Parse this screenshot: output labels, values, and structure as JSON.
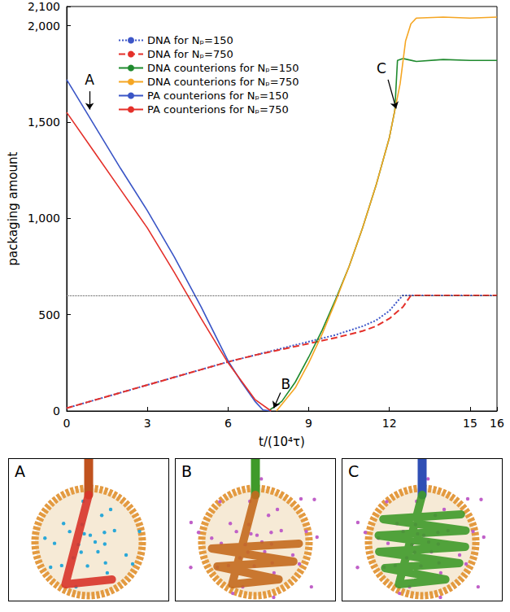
{
  "chart_data": {
    "type": "line",
    "xlabel": "t/(10⁴τ)",
    "ylabel": "packaging amount",
    "xlim": [
      0,
      16
    ],
    "xticks": [
      0,
      3,
      6,
      9,
      12,
      15
    ],
    "ylim": [
      0,
      2100
    ],
    "yticks": [
      0,
      500,
      1000,
      1500,
      2000
    ],
    "grid": false,
    "legend": "upper left",
    "reference_line": 600,
    "series": [
      {
        "name": "DNA for Nₚ=150",
        "color": "#3d56c8",
        "line_style": "dotted",
        "values": [
          [
            0,
            15
          ],
          [
            1,
            55
          ],
          [
            2,
            95
          ],
          [
            3,
            135
          ],
          [
            4,
            175
          ],
          [
            5,
            215
          ],
          [
            6,
            255
          ],
          [
            7,
            290
          ],
          [
            8,
            325
          ],
          [
            9,
            360
          ],
          [
            10,
            395
          ],
          [
            11,
            440
          ],
          [
            11.5,
            470
          ],
          [
            12,
            520
          ],
          [
            12.3,
            570
          ],
          [
            12.5,
            600
          ],
          [
            16,
            600
          ]
        ]
      },
      {
        "name": "DNA for Nₚ=750",
        "color": "#e4302a",
        "line_style": "dashed",
        "values": [
          [
            0,
            15
          ],
          [
            1,
            55
          ],
          [
            2,
            95
          ],
          [
            3,
            135
          ],
          [
            4,
            175
          ],
          [
            5,
            215
          ],
          [
            6,
            255
          ],
          [
            7,
            290
          ],
          [
            8,
            320
          ],
          [
            9,
            350
          ],
          [
            10,
            380
          ],
          [
            11,
            415
          ],
          [
            11.5,
            440
          ],
          [
            12,
            480
          ],
          [
            12.5,
            540
          ],
          [
            12.8,
            600
          ],
          [
            16,
            600
          ]
        ]
      },
      {
        "name": "DNA counterions for Nₚ=150",
        "color": "#1f8a2e",
        "line_style": "solid",
        "values": [
          [
            7.5,
            0
          ],
          [
            8,
            50
          ],
          [
            8.5,
            150
          ],
          [
            9,
            280
          ],
          [
            9.5,
            420
          ],
          [
            10,
            580
          ],
          [
            10.5,
            750
          ],
          [
            11,
            950
          ],
          [
            11.5,
            1170
          ],
          [
            12,
            1420
          ],
          [
            12.2,
            1560
          ],
          [
            12.3,
            1820
          ],
          [
            12.5,
            1830
          ],
          [
            13,
            1815
          ],
          [
            14,
            1825
          ],
          [
            15,
            1820
          ],
          [
            16,
            1820
          ]
        ]
      },
      {
        "name": "DNA counterions for Nₚ=750",
        "color": "#f5a623",
        "line_style": "solid",
        "values": [
          [
            7.8,
            0
          ],
          [
            8.5,
            120
          ],
          [
            9,
            250
          ],
          [
            9.5,
            400
          ],
          [
            10,
            570
          ],
          [
            10.5,
            750
          ],
          [
            11,
            950
          ],
          [
            11.5,
            1170
          ],
          [
            12,
            1420
          ],
          [
            12.4,
            1700
          ],
          [
            12.6,
            1920
          ],
          [
            12.8,
            2010
          ],
          [
            13,
            2040
          ],
          [
            14,
            2045
          ],
          [
            15,
            2040
          ],
          [
            16,
            2045
          ]
        ]
      },
      {
        "name": "PA counterions for Nₚ=150",
        "color": "#3a55c6",
        "line_style": "solid",
        "values": [
          [
            0,
            1720
          ],
          [
            1,
            1490
          ],
          [
            2,
            1260
          ],
          [
            3,
            1040
          ],
          [
            4,
            800
          ],
          [
            5,
            540
          ],
          [
            6,
            260
          ],
          [
            6.5,
            150
          ],
          [
            7,
            50
          ],
          [
            7.3,
            5
          ],
          [
            7.6,
            0
          ]
        ]
      },
      {
        "name": "PA counterions for Nₚ=750",
        "color": "#e4302a",
        "line_style": "solid",
        "values": [
          [
            0,
            1550
          ],
          [
            1,
            1350
          ],
          [
            2,
            1150
          ],
          [
            3,
            950
          ],
          [
            4,
            720
          ],
          [
            5,
            480
          ],
          [
            6,
            250
          ],
          [
            7,
            60
          ],
          [
            7.6,
            0
          ]
        ]
      }
    ],
    "annotations": [
      {
        "text": "A",
        "x": 0.85,
        "y": 1720,
        "arrow_from": [
          0.85,
          1660
        ],
        "arrow_to": [
          0.85,
          1565
        ]
      },
      {
        "text": "B",
        "x": 8.15,
        "y": 140,
        "arrow_from": [
          7.95,
          95
        ],
        "arrow_to": [
          7.7,
          15
        ]
      },
      {
        "text": "C",
        "x": 11.7,
        "y": 1780,
        "arrow_from": [
          11.95,
          1720
        ],
        "arrow_to": [
          12.25,
          1570
        ]
      }
    ]
  },
  "panels": [
    {
      "label": "A"
    },
    {
      "label": "B"
    },
    {
      "label": "C"
    }
  ]
}
